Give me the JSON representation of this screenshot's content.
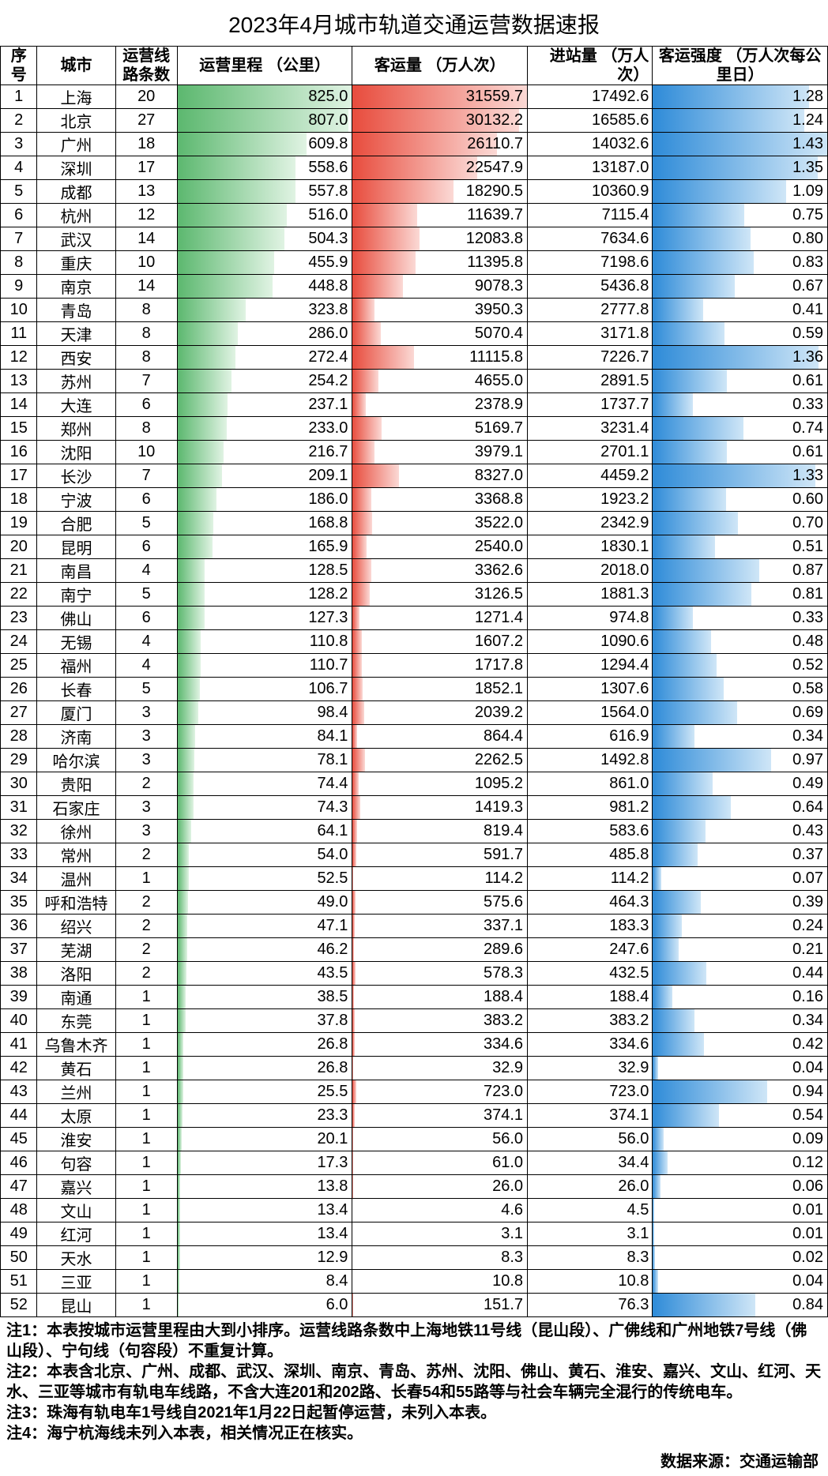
{
  "title": "2023年4月城市轨道交通运营数据速报",
  "columns": [
    "序号",
    "城市",
    "运营线\n路条数",
    "运营里程\n（公里）",
    "客运量\n（万人次）",
    "进站量\n（万人次）",
    "客运强度\n（万人次每公里日）"
  ],
  "bar_styles": {
    "mileage": {
      "start": "#5cb86f",
      "end": "#e0f3e3",
      "max": 825.0
    },
    "passengers": {
      "start": "#e84c3d",
      "end": "#fbd9d5",
      "max": 31559.7
    },
    "intensity": {
      "start": "#2e8bd8",
      "end": "#cfe6f7",
      "max": 1.43
    }
  },
  "rows": [
    {
      "idx": 1,
      "city": "上海",
      "lines": 20,
      "mileage": 825.0,
      "passengers": 31559.7,
      "entries": 17492.6,
      "intensity": 1.28
    },
    {
      "idx": 2,
      "city": "北京",
      "lines": 27,
      "mileage": 807.0,
      "passengers": 30132.2,
      "entries": 16585.6,
      "intensity": 1.24
    },
    {
      "idx": 3,
      "city": "广州",
      "lines": 18,
      "mileage": 609.8,
      "passengers": 26110.7,
      "entries": 14032.6,
      "intensity": 1.43
    },
    {
      "idx": 4,
      "city": "深圳",
      "lines": 17,
      "mileage": 558.6,
      "passengers": 22547.9,
      "entries": 13187.0,
      "intensity": 1.35
    },
    {
      "idx": 5,
      "city": "成都",
      "lines": 13,
      "mileage": 557.8,
      "passengers": 18290.5,
      "entries": 10360.9,
      "intensity": 1.09
    },
    {
      "idx": 6,
      "city": "杭州",
      "lines": 12,
      "mileage": 516.0,
      "passengers": 11639.7,
      "entries": 7115.4,
      "intensity": 0.75
    },
    {
      "idx": 7,
      "city": "武汉",
      "lines": 14,
      "mileage": 504.3,
      "passengers": 12083.8,
      "entries": 7634.6,
      "intensity": 0.8
    },
    {
      "idx": 8,
      "city": "重庆",
      "lines": 10,
      "mileage": 455.9,
      "passengers": 11395.8,
      "entries": 7198.6,
      "intensity": 0.83
    },
    {
      "idx": 9,
      "city": "南京",
      "lines": 14,
      "mileage": 448.8,
      "passengers": 9078.3,
      "entries": 5436.8,
      "intensity": 0.67
    },
    {
      "idx": 10,
      "city": "青岛",
      "lines": 8,
      "mileage": 323.8,
      "passengers": 3950.3,
      "entries": 2777.8,
      "intensity": 0.41
    },
    {
      "idx": 11,
      "city": "天津",
      "lines": 8,
      "mileage": 286.0,
      "passengers": 5070.4,
      "entries": 3171.8,
      "intensity": 0.59
    },
    {
      "idx": 12,
      "city": "西安",
      "lines": 8,
      "mileage": 272.4,
      "passengers": 11115.8,
      "entries": 7226.7,
      "intensity": 1.36
    },
    {
      "idx": 13,
      "city": "苏州",
      "lines": 7,
      "mileage": 254.2,
      "passengers": 4655.0,
      "entries": 2891.5,
      "intensity": 0.61
    },
    {
      "idx": 14,
      "city": "大连",
      "lines": 6,
      "mileage": 237.1,
      "passengers": 2378.9,
      "entries": 1737.7,
      "intensity": 0.33
    },
    {
      "idx": 15,
      "city": "郑州",
      "lines": 8,
      "mileage": 233.0,
      "passengers": 5169.7,
      "entries": 3231.4,
      "intensity": 0.74
    },
    {
      "idx": 16,
      "city": "沈阳",
      "lines": 10,
      "mileage": 216.7,
      "passengers": 3979.1,
      "entries": 2701.1,
      "intensity": 0.61
    },
    {
      "idx": 17,
      "city": "长沙",
      "lines": 7,
      "mileage": 209.1,
      "passengers": 8327.0,
      "entries": 4459.2,
      "intensity": 1.33
    },
    {
      "idx": 18,
      "city": "宁波",
      "lines": 6,
      "mileage": 186.0,
      "passengers": 3368.8,
      "entries": 1923.2,
      "intensity": 0.6
    },
    {
      "idx": 19,
      "city": "合肥",
      "lines": 5,
      "mileage": 168.8,
      "passengers": 3522.0,
      "entries": 2342.9,
      "intensity": 0.7
    },
    {
      "idx": 20,
      "city": "昆明",
      "lines": 6,
      "mileage": 165.9,
      "passengers": 2540.0,
      "entries": 1830.1,
      "intensity": 0.51
    },
    {
      "idx": 21,
      "city": "南昌",
      "lines": 4,
      "mileage": 128.5,
      "passengers": 3362.6,
      "entries": 2018.0,
      "intensity": 0.87
    },
    {
      "idx": 22,
      "city": "南宁",
      "lines": 5,
      "mileage": 128.2,
      "passengers": 3126.5,
      "entries": 1881.3,
      "intensity": 0.81
    },
    {
      "idx": 23,
      "city": "佛山",
      "lines": 6,
      "mileage": 127.3,
      "passengers": 1271.4,
      "entries": 974.8,
      "intensity": 0.33
    },
    {
      "idx": 24,
      "city": "无锡",
      "lines": 4,
      "mileage": 110.8,
      "passengers": 1607.2,
      "entries": 1090.6,
      "intensity": 0.48
    },
    {
      "idx": 25,
      "city": "福州",
      "lines": 4,
      "mileage": 110.7,
      "passengers": 1717.8,
      "entries": 1294.4,
      "intensity": 0.52
    },
    {
      "idx": 26,
      "city": "长春",
      "lines": 5,
      "mileage": 106.7,
      "passengers": 1852.1,
      "entries": 1307.6,
      "intensity": 0.58
    },
    {
      "idx": 27,
      "city": "厦门",
      "lines": 3,
      "mileage": 98.4,
      "passengers": 2039.2,
      "entries": 1564.0,
      "intensity": 0.69
    },
    {
      "idx": 28,
      "city": "济南",
      "lines": 3,
      "mileage": 84.1,
      "passengers": 864.4,
      "entries": 616.9,
      "intensity": 0.34
    },
    {
      "idx": 29,
      "city": "哈尔滨",
      "lines": 3,
      "mileage": 78.1,
      "passengers": 2262.5,
      "entries": 1492.8,
      "intensity": 0.97
    },
    {
      "idx": 30,
      "city": "贵阳",
      "lines": 2,
      "mileage": 74.4,
      "passengers": 1095.2,
      "entries": 861.0,
      "intensity": 0.49
    },
    {
      "idx": 31,
      "city": "石家庄",
      "lines": 3,
      "mileage": 74.3,
      "passengers": 1419.3,
      "entries": 981.2,
      "intensity": 0.64
    },
    {
      "idx": 32,
      "city": "徐州",
      "lines": 3,
      "mileage": 64.1,
      "passengers": 819.4,
      "entries": 583.6,
      "intensity": 0.43
    },
    {
      "idx": 33,
      "city": "常州",
      "lines": 2,
      "mileage": 54.0,
      "passengers": 591.7,
      "entries": 485.8,
      "intensity": 0.37
    },
    {
      "idx": 34,
      "city": "温州",
      "lines": 1,
      "mileage": 52.5,
      "passengers": 114.2,
      "entries": 114.2,
      "intensity": 0.07
    },
    {
      "idx": 35,
      "city": "呼和浩特",
      "lines": 2,
      "mileage": 49.0,
      "passengers": 575.6,
      "entries": 464.3,
      "intensity": 0.39
    },
    {
      "idx": 36,
      "city": "绍兴",
      "lines": 2,
      "mileage": 47.1,
      "passengers": 337.1,
      "entries": 183.3,
      "intensity": 0.24
    },
    {
      "idx": 37,
      "city": "芜湖",
      "lines": 2,
      "mileage": 46.2,
      "passengers": 289.6,
      "entries": 247.6,
      "intensity": 0.21
    },
    {
      "idx": 38,
      "city": "洛阳",
      "lines": 2,
      "mileage": 43.5,
      "passengers": 578.3,
      "entries": 432.5,
      "intensity": 0.44
    },
    {
      "idx": 39,
      "city": "南通",
      "lines": 1,
      "mileage": 38.5,
      "passengers": 188.4,
      "entries": 188.4,
      "intensity": 0.16
    },
    {
      "idx": 40,
      "city": "东莞",
      "lines": 1,
      "mileage": 37.8,
      "passengers": 383.2,
      "entries": 383.2,
      "intensity": 0.34
    },
    {
      "idx": 41,
      "city": "乌鲁木齐",
      "lines": 1,
      "mileage": 26.8,
      "passengers": 334.6,
      "entries": 334.6,
      "intensity": 0.42
    },
    {
      "idx": 42,
      "city": "黄石",
      "lines": 1,
      "mileage": 26.8,
      "passengers": 32.9,
      "entries": 32.9,
      "intensity": 0.04
    },
    {
      "idx": 43,
      "city": "兰州",
      "lines": 1,
      "mileage": 25.5,
      "passengers": 723.0,
      "entries": 723.0,
      "intensity": 0.94
    },
    {
      "idx": 44,
      "city": "太原",
      "lines": 1,
      "mileage": 23.3,
      "passengers": 374.1,
      "entries": 374.1,
      "intensity": 0.54
    },
    {
      "idx": 45,
      "city": "淮安",
      "lines": 1,
      "mileage": 20.1,
      "passengers": 56.0,
      "entries": 56.0,
      "intensity": 0.09
    },
    {
      "idx": 46,
      "city": "句容",
      "lines": 1,
      "mileage": 17.3,
      "passengers": 61.0,
      "entries": 34.4,
      "intensity": 0.12
    },
    {
      "idx": 47,
      "city": "嘉兴",
      "lines": 1,
      "mileage": 13.8,
      "passengers": 26.0,
      "entries": 26.0,
      "intensity": 0.06
    },
    {
      "idx": 48,
      "city": "文山",
      "lines": 1,
      "mileage": 13.4,
      "passengers": 4.6,
      "entries": 4.5,
      "intensity": 0.01
    },
    {
      "idx": 49,
      "city": "红河",
      "lines": 1,
      "mileage": 13.4,
      "passengers": 3.1,
      "entries": 3.1,
      "intensity": 0.01
    },
    {
      "idx": 50,
      "city": "天水",
      "lines": 1,
      "mileage": 12.9,
      "passengers": 8.3,
      "entries": 8.3,
      "intensity": 0.02
    },
    {
      "idx": 51,
      "city": "三亚",
      "lines": 1,
      "mileage": 8.4,
      "passengers": 10.8,
      "entries": 10.8,
      "intensity": 0.04
    },
    {
      "idx": 52,
      "city": "昆山",
      "lines": 1,
      "mileage": 6.0,
      "passengers": 151.7,
      "entries": 76.3,
      "intensity": 0.84
    }
  ],
  "notes": [
    "注1：本表按城市运营里程由大到小排序。运营线路条数中上海地铁11号线（昆山段）、广佛线和广州地铁7号线（佛山段）、宁句线（句容段）不重复计算。",
    "注2：本表含北京、广州、成都、武汉、深圳、南京、青岛、苏州、沈阳、佛山、黄石、淮安、嘉兴、文山、红河、天水、三亚等城市有轨电车线路，不含大连201和202路、长春54和55路等与社会车辆完全混行的传统电车。",
    "注3：珠海有轨电车1号线自2021年1月22日起暂停运营，未列入本表。",
    "注4：海宁杭海线未列入本表，相关情况正在核实。"
  ],
  "source": "数据来源：交通运输部"
}
